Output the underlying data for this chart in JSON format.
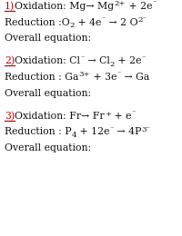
{
  "background_color": "#ffffff",
  "figsize": [
    2.0,
    2.6
  ],
  "dpi": 100,
  "font_size": 7.8,
  "font_family": "DejaVu Serif",
  "sections": [
    {
      "number": "1)",
      "number_color": "#cc0000",
      "lines": [
        [
          {
            "t": "Oxidation: Mg→ Mg",
            "s": 0,
            "sup": false,
            "sub": false
          },
          {
            "t": "2+",
            "s": -1,
            "sup": true,
            "sub": false
          },
          {
            "t": " + 2e",
            "s": 0,
            "sup": false,
            "sub": false
          },
          {
            "t": "⁻",
            "s": -1,
            "sup": true,
            "sub": false
          }
        ],
        [
          {
            "t": "Reduction :O",
            "s": 0,
            "sup": false,
            "sub": false
          },
          {
            "t": "2",
            "s": -1,
            "sup": false,
            "sub": true
          },
          {
            "t": " + 4e",
            "s": 0,
            "sup": false,
            "sub": false
          },
          {
            "t": "⁻",
            "s": -1,
            "sup": true,
            "sub": false
          },
          {
            "t": " → 2 O",
            "s": 0,
            "sup": false,
            "sub": false
          },
          {
            "t": "2⁻",
            "s": -1,
            "sup": true,
            "sub": false
          }
        ],
        [
          {
            "t": "Overall equation:",
            "s": 0,
            "sup": false,
            "sub": false
          }
        ]
      ]
    },
    {
      "number": "2)",
      "number_color": "#cc0000",
      "lines": [
        [
          {
            "t": "Oxidation: Cl",
            "s": 0,
            "sup": false,
            "sub": false
          },
          {
            "t": "⁻",
            "s": -1,
            "sup": true,
            "sub": false
          },
          {
            "t": " → Cl",
            "s": 0,
            "sup": false,
            "sub": false
          },
          {
            "t": "2",
            "s": -1,
            "sup": false,
            "sub": true
          },
          {
            "t": " + 2e",
            "s": 0,
            "sup": false,
            "sub": false
          },
          {
            "t": "⁻",
            "s": -1,
            "sup": true,
            "sub": false
          }
        ],
        [
          {
            "t": "Reduction : Ga",
            "s": 0,
            "sup": false,
            "sub": false
          },
          {
            "t": "3+",
            "s": -1,
            "sup": true,
            "sub": false
          },
          {
            "t": " + 3e",
            "s": 0,
            "sup": false,
            "sub": false
          },
          {
            "t": "⁻",
            "s": -1,
            "sup": true,
            "sub": false
          },
          {
            "t": " → Ga",
            "s": 0,
            "sup": false,
            "sub": false
          }
        ],
        [
          {
            "t": "Overall equation:",
            "s": 0,
            "sup": false,
            "sub": false
          }
        ]
      ]
    },
    {
      "number": "3)",
      "number_color": "#cc0000",
      "lines": [
        [
          {
            "t": "Oxidation: Fr→ Fr",
            "s": 0,
            "sup": false,
            "sub": false
          },
          {
            "t": "+",
            "s": -1,
            "sup": true,
            "sub": false
          },
          {
            "t": " + e",
            "s": 0,
            "sup": false,
            "sub": false
          },
          {
            "t": "⁻",
            "s": -1,
            "sup": true,
            "sub": false
          }
        ],
        [
          {
            "t": "Reduction : P",
            "s": 0,
            "sup": false,
            "sub": false
          },
          {
            "t": "4",
            "s": -1,
            "sup": false,
            "sub": true
          },
          {
            "t": " + 12e",
            "s": 0,
            "sup": false,
            "sub": false
          },
          {
            "t": "⁻",
            "s": -1,
            "sup": true,
            "sub": false
          },
          {
            "t": " → 4P",
            "s": 0,
            "sup": false,
            "sub": false
          },
          {
            "t": "3⁻",
            "s": -1,
            "sup": true,
            "sub": false
          }
        ],
        [
          {
            "t": "Overall equation:",
            "s": 0,
            "sup": false,
            "sub": false
          }
        ]
      ]
    }
  ]
}
